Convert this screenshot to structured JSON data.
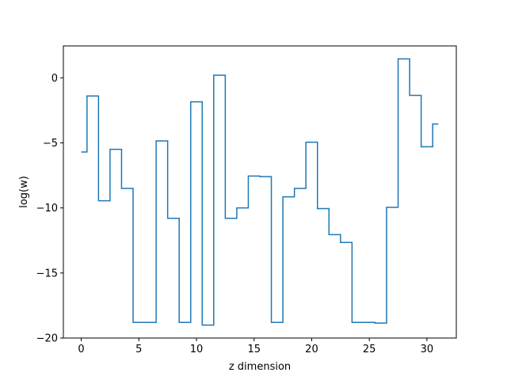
{
  "chart_data": {
    "type": "line",
    "drawstyle": "steps-mid",
    "title": "",
    "xlabel": "z dimension",
    "ylabel": "log(w)",
    "xlim": [
      -1.55,
      32.55
    ],
    "ylim": [
      -20.0,
      2.45
    ],
    "xticks": [
      0,
      5,
      10,
      15,
      20,
      25,
      30
    ],
    "yticks": [
      -20,
      -15,
      -10,
      -5,
      0
    ],
    "ytick_labels": [
      "−20",
      "−15",
      "−10",
      "−5",
      "0"
    ],
    "grid": false,
    "legend": "none",
    "series": [
      {
        "color": "#1f77b4",
        "x": [
          0,
          1,
          2,
          3,
          4,
          5,
          6,
          7,
          8,
          9,
          10,
          11,
          12,
          13,
          14,
          15,
          16,
          17,
          18,
          19,
          20,
          21,
          22,
          23,
          24,
          25,
          26,
          27,
          28,
          29,
          30,
          31
        ],
        "y": [
          -5.7,
          -1.4,
          -9.45,
          -5.5,
          -8.5,
          -18.8,
          -18.8,
          -4.85,
          -10.8,
          -18.8,
          -1.85,
          -19.0,
          0.2,
          -10.8,
          -10.0,
          -7.55,
          -7.6,
          -18.8,
          -9.15,
          -8.5,
          -4.95,
          -10.05,
          -12.05,
          -12.65,
          -18.8,
          -18.8,
          -18.85,
          -9.95,
          1.45,
          -1.35,
          -5.3,
          -3.55
        ]
      }
    ]
  }
}
